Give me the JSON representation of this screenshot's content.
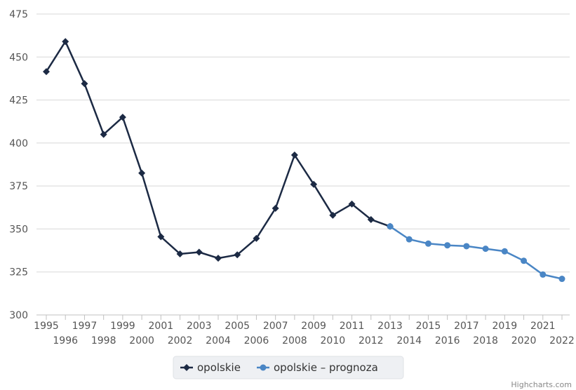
{
  "chart_data": {
    "type": "line",
    "x_categories": [
      "1995",
      "1996",
      "1997",
      "1998",
      "1999",
      "2000",
      "2001",
      "2002",
      "2003",
      "2004",
      "2005",
      "2006",
      "2007",
      "2008",
      "2009",
      "2010",
      "2011",
      "2012",
      "2013",
      "2014",
      "2015",
      "2016",
      "2017",
      "2018",
      "2019",
      "2020",
      "2021",
      "2022"
    ],
    "ylim": [
      300,
      475
    ],
    "y_ticks": [
      300,
      325,
      350,
      375,
      400,
      425,
      450,
      475
    ],
    "grid": true,
    "legend_position": "bottom-center",
    "series": [
      {
        "name": "opolskie",
        "color": "#1c2a44",
        "marker": "diamond",
        "x": [
          "1995",
          "1996",
          "1997",
          "1998",
          "1999",
          "2000",
          "2001",
          "2002",
          "2003",
          "2004",
          "2005",
          "2006",
          "2007",
          "2008",
          "2009",
          "2010",
          "2011",
          "2012",
          "2013"
        ],
        "values": [
          441.5,
          459,
          434.5,
          405,
          415,
          382.5,
          345.5,
          335.5,
          336.5,
          333,
          335,
          344.5,
          362,
          393,
          376,
          358,
          364.5,
          355.5,
          351.5
        ]
      },
      {
        "name": "opolskie - prognoza",
        "color": "#4a86c5",
        "marker": "circle",
        "x": [
          "2013",
          "2014",
          "2015",
          "2016",
          "2017",
          "2018",
          "2019",
          "2020",
          "2021",
          "2022"
        ],
        "values": [
          351.5,
          344,
          341.5,
          340.5,
          340,
          338.5,
          337,
          331.5,
          323.5,
          321
        ]
      }
    ]
  },
  "credits": "Highcharts.com"
}
